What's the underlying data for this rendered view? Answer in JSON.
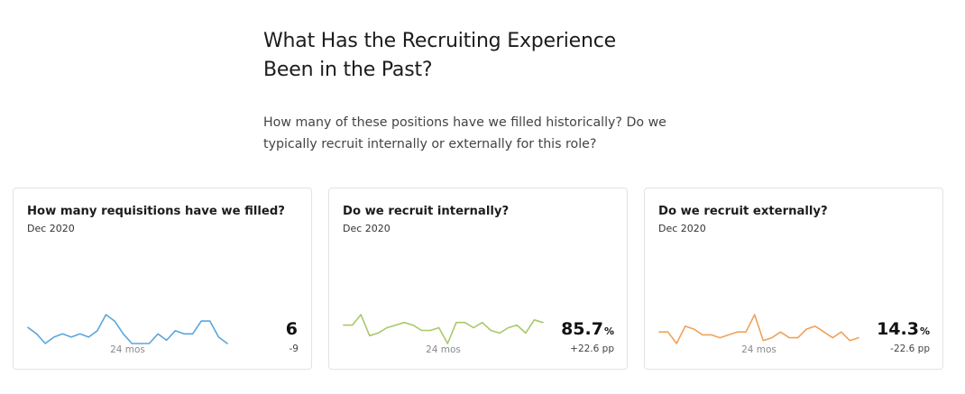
{
  "page": {
    "heading_line1": "What Has the Recruiting Experience",
    "heading_line2": "Been in the Past?",
    "intro_line1": "How many of these positions have we filled historically? Do we",
    "intro_line2": "typically recruit internally or externally for this role?"
  },
  "cards": [
    {
      "title": "How many requisitions have we filled?",
      "date": "Dec 2020",
      "period": "24 mos",
      "value": "6",
      "unit": "",
      "delta": "-9",
      "color": "#5aa6dd",
      "sparkline": [
        6,
        4,
        1,
        3,
        4,
        3,
        4,
        3,
        5,
        10,
        8,
        4,
        1,
        1,
        1,
        4,
        2,
        5,
        4,
        4,
        8,
        8,
        3,
        1
      ]
    },
    {
      "title": "Do we recruit internally?",
      "date": "Dec 2020",
      "period": "24 mos",
      "value": "85.7",
      "unit": "%",
      "delta": "+22.6 pp",
      "color": "#a8c86a",
      "sparkline": [
        8,
        8,
        12,
        4,
        5,
        7,
        8,
        9,
        8,
        6,
        6,
        7,
        1,
        9,
        9,
        7,
        9,
        6,
        5,
        7,
        8,
        5,
        10,
        9
      ]
    },
    {
      "title": "Do we recruit externally?",
      "date": "Dec 2020",
      "period": "24 mos",
      "value": "14.3",
      "unit": "%",
      "delta": "-22.6 pp",
      "color": "#eea25a",
      "sparkline": [
        5,
        5,
        1,
        7,
        6,
        4,
        4,
        3,
        4,
        5,
        5,
        11,
        2,
        3,
        5,
        3,
        3,
        6,
        7,
        5,
        3,
        5,
        2,
        3
      ]
    }
  ]
}
